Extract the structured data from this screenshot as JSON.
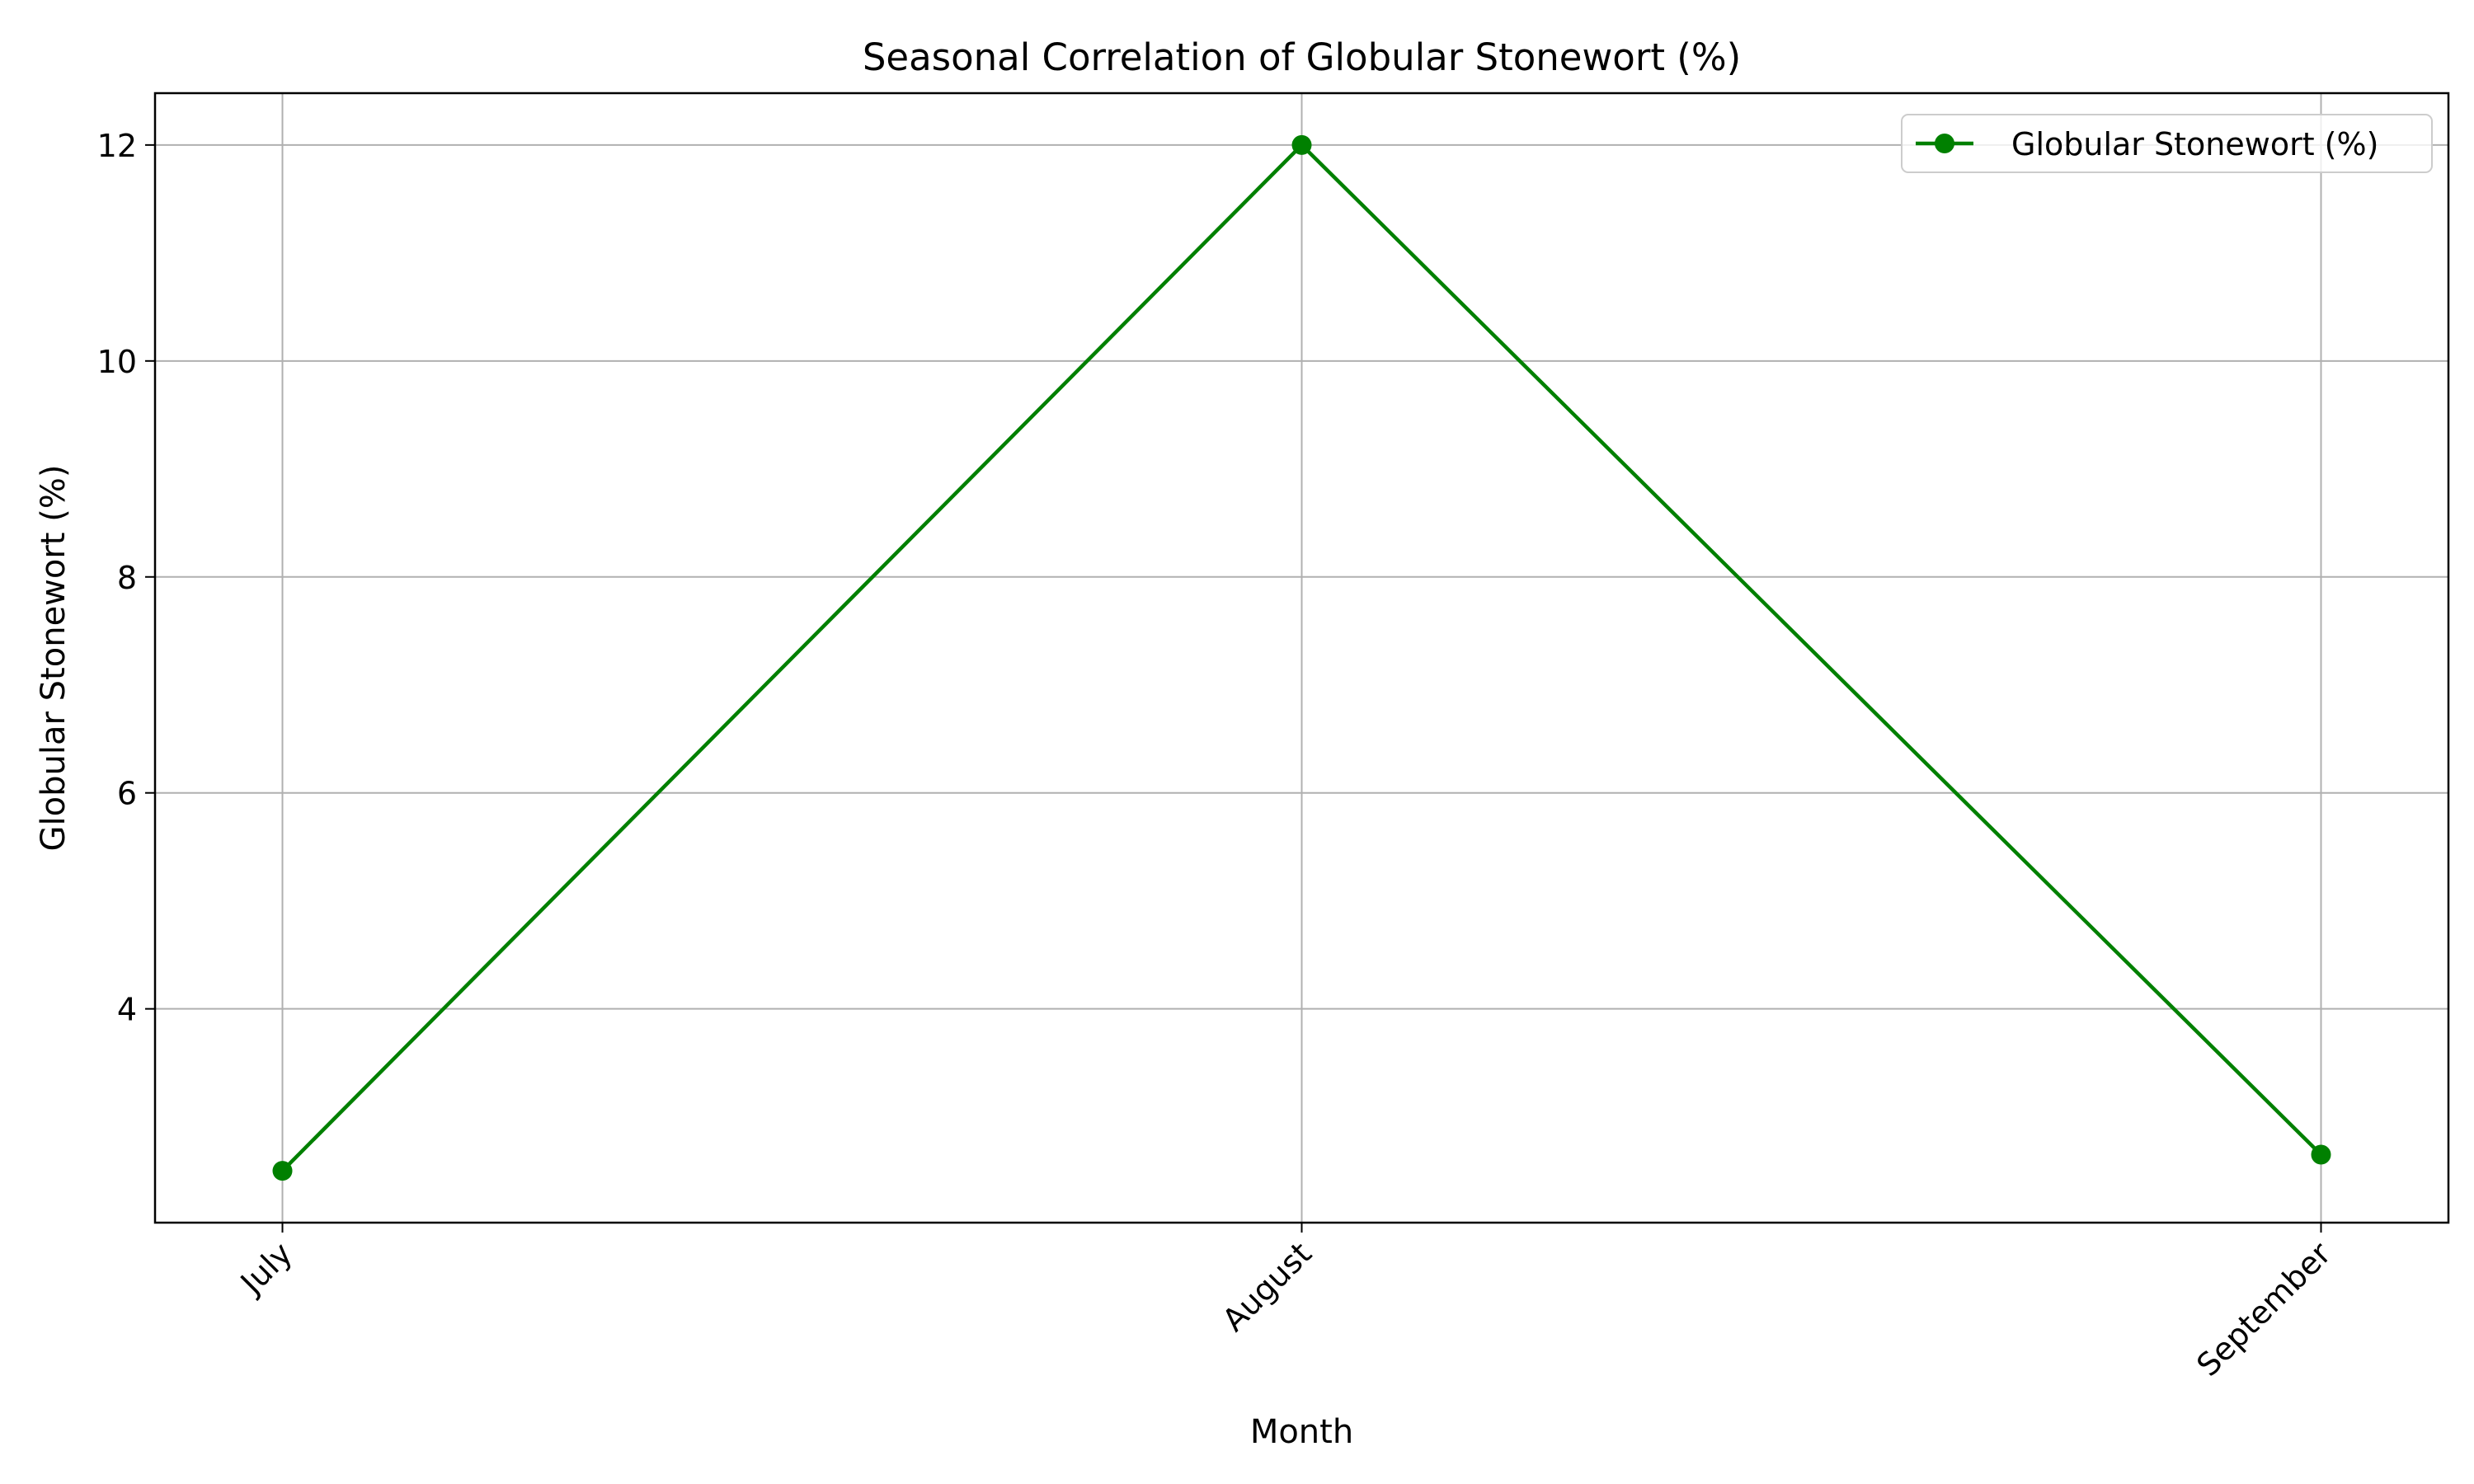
{
  "chart_data": {
    "type": "line",
    "title": "Seasonal Correlation of Globular Stonewort (%)",
    "xlabel": "Month",
    "ylabel": "Globular Stonewort (%)",
    "categories": [
      "July",
      "August",
      "September"
    ],
    "series": [
      {
        "name": "Globular Stonewort (%)",
        "values": [
          2.5,
          12.0,
          2.65
        ],
        "color": "#008000",
        "marker": "circle"
      }
    ],
    "ylim": [
      2.02,
      12.48
    ],
    "yticks": [
      4,
      6,
      8,
      10,
      12
    ],
    "grid": true,
    "legend_position": "top-right",
    "xtick_rotation": -45
  }
}
